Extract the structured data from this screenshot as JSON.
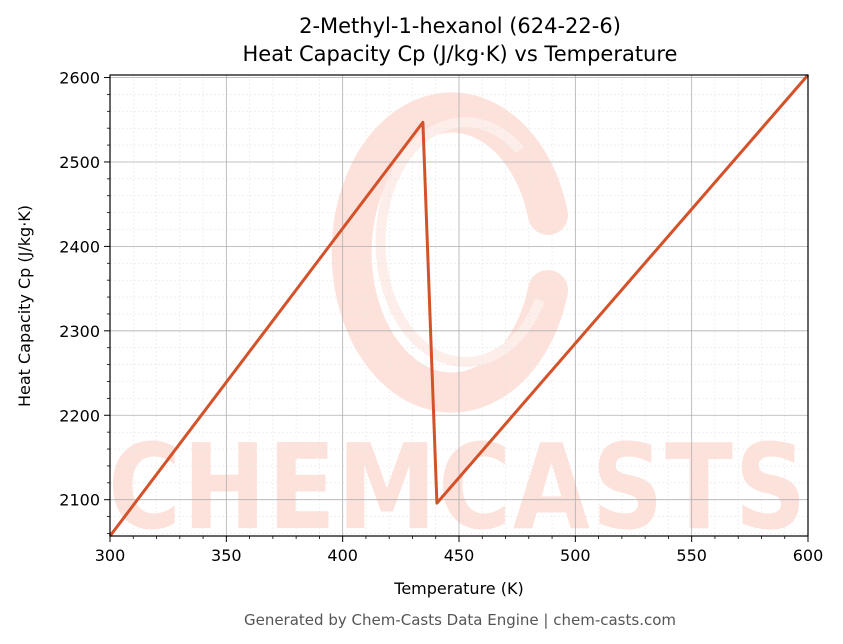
{
  "colors": {
    "line": "#d4522a",
    "grid_major": "#b0b0b0",
    "grid_minor": "#e6e6e6",
    "watermark": "#fde2dc"
  },
  "watermark": {
    "text": "CHEMCASTS"
  },
  "footer": "Generated by Chem-Casts Data Engine | chem-casts.com",
  "chart_data": {
    "type": "line",
    "title": "2-Methyl-1-hexanol (624-22-6)",
    "subtitle": "Heat Capacity Cp (J/kg·K) vs Temperature",
    "xlabel": "Temperature (K)",
    "ylabel": "Heat Capacity Cp (J/kg·K)",
    "xlim": [
      300,
      600
    ],
    "ylim": [
      2057,
      2603
    ],
    "xticks": [
      300,
      350,
      400,
      450,
      500,
      550,
      600
    ],
    "yticks": [
      2100,
      2200,
      2300,
      2400,
      2500,
      2600
    ],
    "grid": true,
    "series": [
      {
        "x": [
          300,
          434.5,
          440.5,
          600
        ],
        "y": [
          2057,
          2547,
          2096,
          2603
        ]
      }
    ]
  }
}
